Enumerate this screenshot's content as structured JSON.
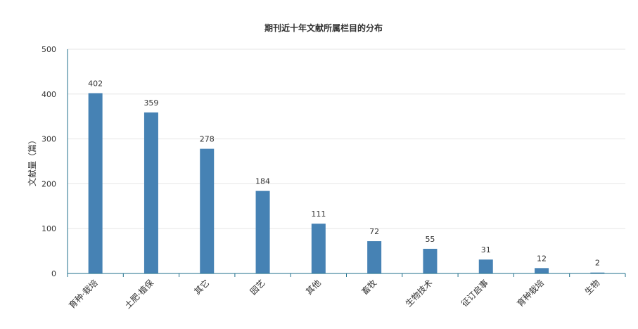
{
  "chart_data": {
    "type": "bar",
    "title": "期刊近十年文献所属栏目的分布",
    "xlabel": "",
    "ylabel": "文献量（篇）",
    "categories": [
      "育种·栽培",
      "土肥·植保",
      "其它",
      "园艺",
      "其他",
      "畜牧",
      "生物技术",
      "征订启事",
      "育种栽培",
      "生物"
    ],
    "values": [
      402,
      359,
      278,
      184,
      111,
      72,
      55,
      31,
      12,
      2
    ],
    "ylim": [
      0,
      500
    ],
    "yticks": [
      0,
      100,
      200,
      300,
      400,
      500
    ],
    "grid": true,
    "legend": "none",
    "bar_color": "#4682b4",
    "axis_color": "#1f6f8b",
    "grid_color": "#e6e6e6"
  }
}
